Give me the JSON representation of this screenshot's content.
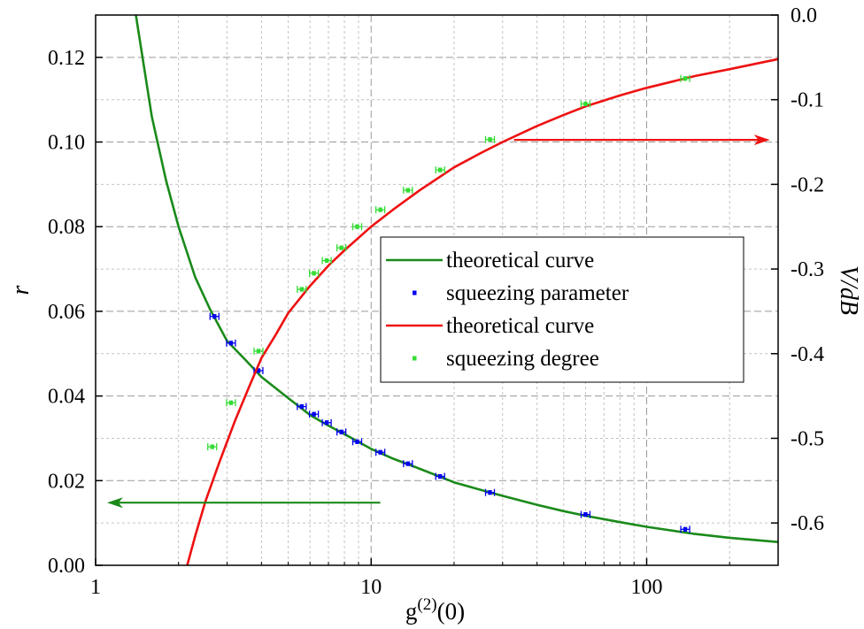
{
  "chart_data": {
    "type": "scatter",
    "xlabel": "g",
    "xlabel_sup": "(2)",
    "xlabel_suffix": "(0)",
    "ylabel": "r",
    "y2label": "V/dB",
    "xscale": "log",
    "xlim": [
      1,
      300
    ],
    "ylim": [
      0,
      0.13
    ],
    "y2lim": [
      -0.65,
      0
    ],
    "grid": true,
    "legend_position": "center-right",
    "x_ticks": [
      {
        "value": 1,
        "label": "1"
      },
      {
        "value": 10,
        "label": "10"
      },
      {
        "value": 100,
        "label": "100"
      }
    ],
    "y_ticks": [
      {
        "value": 0,
        "label": "0.00"
      },
      {
        "value": 0.02,
        "label": "0.02"
      },
      {
        "value": 0.04,
        "label": "0.04"
      },
      {
        "value": 0.06,
        "label": "0.06"
      },
      {
        "value": 0.08,
        "label": "0.08"
      },
      {
        "value": 0.1,
        "label": "0.10"
      },
      {
        "value": 0.12,
        "label": "0.12"
      }
    ],
    "y2_ticks": [
      {
        "value": 0,
        "label": "0.0"
      },
      {
        "value": -0.1,
        "label": "-0.1"
      },
      {
        "value": -0.2,
        "label": "-0.2"
      },
      {
        "value": -0.3,
        "label": "-0.3"
      },
      {
        "value": -0.4,
        "label": "-0.4"
      },
      {
        "value": -0.5,
        "label": "-0.5"
      },
      {
        "value": -0.6,
        "label": "-0.6"
      }
    ],
    "series": [
      {
        "name": "theoretical curve",
        "kind": "line",
        "axis": "left",
        "color": "#1a8a1a",
        "x": [
          1.4,
          1.6,
          1.8,
          2.0,
          2.3,
          2.6,
          3.0,
          3.5,
          4.0,
          5.0,
          6.0,
          7.0,
          8.0,
          10,
          12,
          15,
          20,
          25,
          30,
          40,
          50,
          60,
          80,
          100,
          150,
          200,
          300
        ],
        "y": [
          0.13,
          0.106,
          0.091,
          0.08,
          0.068,
          0.0605,
          0.053,
          0.0485,
          0.0445,
          0.0395,
          0.0355,
          0.033,
          0.031,
          0.0275,
          0.0252,
          0.0228,
          0.0196,
          0.0178,
          0.0164,
          0.0143,
          0.0128,
          0.0117,
          0.0102,
          0.0091,
          0.0074,
          0.0065,
          0.0055
        ]
      },
      {
        "name": "squeezing parameter",
        "kind": "points",
        "axis": "left",
        "color": "#0000ee",
        "x": [
          2.7,
          3.1,
          3.9,
          5.6,
          6.2,
          6.9,
          7.8,
          8.9,
          10.8,
          13.6,
          17.8,
          27.0,
          60.0,
          138.0
        ],
        "y": [
          0.0588,
          0.0525,
          0.046,
          0.0375,
          0.0357,
          0.0337,
          0.0315,
          0.0292,
          0.0267,
          0.024,
          0.021,
          0.0172,
          0.012,
          0.0085
        ]
      },
      {
        "name": "theoretical curve",
        "kind": "line",
        "axis": "right",
        "color": "#ee1111",
        "x": [
          2.15,
          2.3,
          2.5,
          2.8,
          3.2,
          3.6,
          4.0,
          4.5,
          5.0,
          6.0,
          7.0,
          8.0,
          10,
          12,
          15,
          20,
          25,
          30,
          40,
          50,
          60,
          80,
          100,
          150,
          200,
          300
        ],
        "y": [
          -0.65,
          -0.615,
          -0.575,
          -0.53,
          -0.48,
          -0.44,
          -0.405,
          -0.378,
          -0.352,
          -0.32,
          -0.296,
          -0.278,
          -0.25,
          -0.23,
          -0.207,
          -0.18,
          -0.163,
          -0.15,
          -0.131,
          -0.118,
          -0.108,
          -0.095,
          -0.086,
          -0.072,
          -0.064,
          -0.052
        ]
      },
      {
        "name": "squeezing degree",
        "kind": "points",
        "axis": "right",
        "color": "#33dd33",
        "x": [
          2.65,
          3.1,
          3.9,
          5.6,
          6.2,
          6.9,
          7.8,
          8.9,
          10.8,
          13.6,
          17.8,
          27.0,
          60.0,
          138.0
        ],
        "y": [
          -0.51,
          -0.458,
          -0.397,
          -0.324,
          -0.305,
          -0.29,
          -0.275,
          -0.25,
          -0.23,
          -0.207,
          -0.183,
          -0.147,
          -0.105,
          -0.075
        ]
      }
    ],
    "annotations": [
      {
        "kind": "arrow",
        "color": "#1a8a1a",
        "from": {
          "x": 10.8,
          "y": 0.0148
        },
        "to": {
          "x": 1.1,
          "y": 0.0148
        },
        "axis": "left"
      },
      {
        "kind": "arrow",
        "color": "#ee1111",
        "from": {
          "x": 33,
          "y": 0.1005
        },
        "to": {
          "x": 280,
          "y": 0.1005
        },
        "axis": "left"
      }
    ]
  }
}
